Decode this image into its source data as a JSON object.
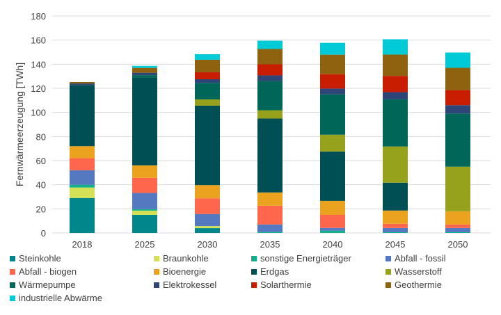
{
  "chart_data": {
    "type": "bar",
    "stacked": true,
    "title": "",
    "xlabel": "",
    "ylabel": "Fernwärmeerzeugung [TWh]",
    "ylim": [
      0,
      180
    ],
    "yticks": [
      0,
      20,
      40,
      60,
      80,
      100,
      120,
      140,
      160,
      180
    ],
    "grid": true,
    "legend_position": "bottom",
    "categories": [
      "2018",
      "2025",
      "2030",
      "2035",
      "2040",
      "2045",
      "2050"
    ],
    "series": [
      {
        "name": "Steinkohle",
        "color": "#00868B",
        "values": [
          29,
          15,
          4,
          0,
          0,
          0,
          0
        ]
      },
      {
        "name": "Braunkohle",
        "color": "#D4E157",
        "values": [
          8.7,
          3.5,
          1.7,
          0,
          0,
          0,
          0
        ]
      },
      {
        "name": "sonstige Energieträger",
        "color": "#13B08B",
        "values": [
          2.3,
          1.2,
          0,
          0.8,
          1.9,
          0.6,
          0.6
        ]
      },
      {
        "name": "Abfall - fossil",
        "color": "#5479C0",
        "values": [
          12,
          13.5,
          10,
          6.2,
          2.3,
          3.5,
          3.5
        ]
      },
      {
        "name": "Abfall - biogen",
        "color": "#FF674D",
        "values": [
          10,
          12.5,
          13,
          15.6,
          10.8,
          3.5,
          2.9
        ]
      },
      {
        "name": "Bioenergie",
        "color": "#EBA21F",
        "values": [
          10,
          10.4,
          11,
          11,
          11.6,
          11,
          11
        ]
      },
      {
        "name": "Erdgas",
        "color": "#004F54",
        "values": [
          50.7,
          72.8,
          65.9,
          61.3,
          41,
          23.1,
          0
        ]
      },
      {
        "name": "Wasserstoff",
        "color": "#97A21C",
        "values": [
          0,
          0,
          5.2,
          6.9,
          13.9,
          30,
          37
        ]
      },
      {
        "name": "Wärmepumpe",
        "color": "#006658",
        "values": [
          0,
          2,
          13.7,
          24.3,
          33.5,
          39.3,
          44.1
        ]
      },
      {
        "name": "Elektrokessel",
        "color": "#2E4677",
        "values": [
          1.3,
          2,
          3,
          4.6,
          4.8,
          5.8,
          6.9
        ]
      },
      {
        "name": "Solarthermie",
        "color": "#C81D00",
        "values": [
          0,
          0,
          5.8,
          9.2,
          11.9,
          13.5,
          12.5
        ]
      },
      {
        "name": "Geothermie",
        "color": "#8F620F",
        "values": [
          1.2,
          4,
          10.4,
          12.7,
          16.2,
          17.7,
          18.5
        ]
      },
      {
        "name": "industrielle Abwärme",
        "color": "#00CAD5",
        "values": [
          0,
          1.7,
          4.6,
          6.9,
          9.8,
          12.7,
          12.7
        ]
      }
    ]
  }
}
